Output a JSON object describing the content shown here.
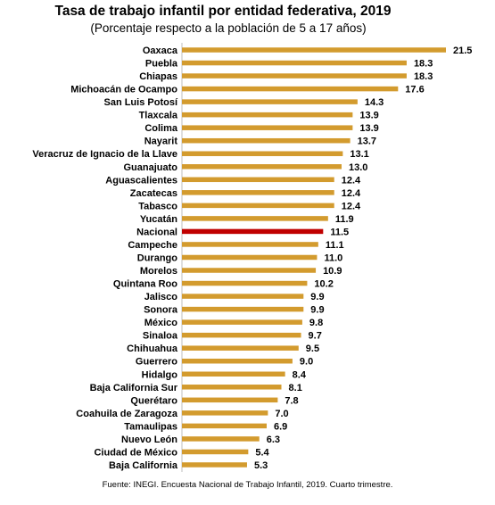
{
  "title": "Tasa de trabajo infantil por entidad federativa, 2019",
  "subtitle": "(Porcentaje respecto a la población de 5 a 17 años)",
  "source": "Fuente: INEGI. Encuesta Nacional de Trabajo Infantil, 2019. Cuarto trimestre.",
  "colors": {
    "bar": "#D39B2E",
    "highlight": "#C00000"
  },
  "chart_data": {
    "type": "bar",
    "orientation": "horizontal",
    "title": "Tasa de trabajo infantil por entidad federativa, 2019",
    "subtitle": "(Porcentaje respecto a la población de 5 a 17 años)",
    "highlight_category": "Nacional",
    "xlim": [
      0,
      21.5
    ],
    "grid": false,
    "categories": [
      "Oaxaca",
      "Puebla",
      "Chiapas",
      "Michoacán de Ocampo",
      "San Luis Potosí",
      "Tlaxcala",
      "Colima",
      "Nayarit",
      "Veracruz de Ignacio de la Llave",
      "Guanajuato",
      "Aguascalientes",
      "Zacatecas",
      "Tabasco",
      "Yucatán",
      "Nacional",
      "Campeche",
      "Durango",
      "Morelos",
      "Quintana Roo",
      "Jalisco",
      "Sonora",
      "México",
      "Sinaloa",
      "Chihuahua",
      "Guerrero",
      "Hidalgo",
      "Baja California Sur",
      "Querétaro",
      "Coahuila de Zaragoza",
      "Tamaulipas",
      "Nuevo León",
      "Ciudad de México",
      "Baja California"
    ],
    "values": [
      21.5,
      18.3,
      18.3,
      17.6,
      14.3,
      13.9,
      13.9,
      13.7,
      13.1,
      13.0,
      12.4,
      12.4,
      12.4,
      11.9,
      11.5,
      11.1,
      11.0,
      10.9,
      10.2,
      9.9,
      9.9,
      9.8,
      9.7,
      9.5,
      9.0,
      8.4,
      8.1,
      7.8,
      7.0,
      6.9,
      6.3,
      5.4,
      5.3
    ],
    "value_labels": [
      "21.5",
      "18.3",
      "18.3",
      "17.6",
      "14.3",
      "13.9",
      "13.9",
      "13.7",
      "13.1",
      "13.0",
      "12.4",
      "12.4",
      "12.4",
      "11.9",
      "11.5",
      "11.1",
      "11.0",
      "10.9",
      "10.2",
      "9.9",
      "9.9",
      "9.8",
      "9.7",
      "9.5",
      "9.0",
      "8.4",
      "8.1",
      "7.8",
      "7.0",
      "6.9",
      "6.3",
      "5.4",
      "5.3"
    ]
  }
}
